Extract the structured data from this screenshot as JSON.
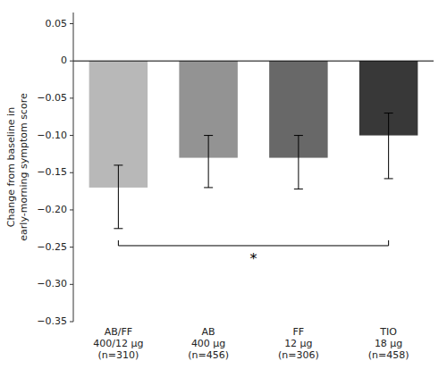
{
  "chart_data": {
    "type": "bar",
    "categories": [
      "AB/FF\n400/12 μg\n(n=310)",
      "AB\n400 μg\n(n=456)",
      "FF\n12 μg\n(n=306)",
      "TIO\n18 μg\n(n=458)"
    ],
    "values": [
      -0.17,
      -0.13,
      -0.13,
      -0.1
    ],
    "errors_upper": [
      0.03,
      0.03,
      0.03,
      0.03
    ],
    "errors_lower": [
      0.055,
      0.04,
      0.042,
      0.058
    ],
    "colors": [
      "#b8b8b8",
      "#939393",
      "#686868",
      "#383838"
    ],
    "ylim": [
      -0.35,
      0.065
    ],
    "yticks": [
      0.05,
      0,
      {
        "value": -0.05,
        "label": "−0.05"
      },
      {
        "value": -0.1,
        "label": "−0.10"
      },
      {
        "value": -0.15,
        "label": "−0.15"
      },
      {
        "value": -0.2,
        "label": "−0.20"
      },
      {
        "value": -0.25,
        "label": "−0.25"
      },
      {
        "value": -0.3,
        "label": "−0.30"
      },
      {
        "value": -0.35,
        "label": "−0.35"
      }
    ],
    "ylabel": "Change from baseline in\nearly-morning symptom score",
    "grid": false,
    "annotations": [
      {
        "type": "bracket",
        "from": 0,
        "to": 3,
        "y": -0.248,
        "text": "*",
        "text_y": -0.258
      }
    ]
  }
}
